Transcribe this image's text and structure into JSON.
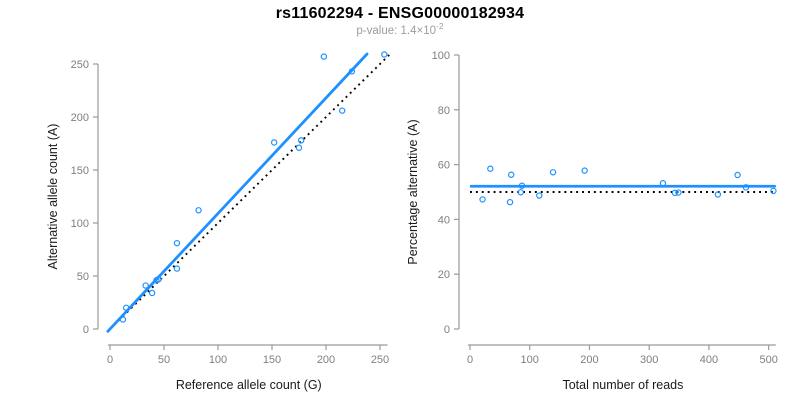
{
  "header": {
    "title": "rs11602294 - ENSG00000182934",
    "subtitle_prefix": "p-value: ",
    "subtitle_mantissa": "1.4×10",
    "subtitle_exponent": "-2"
  },
  "colors": {
    "point_blue": "#1E90FF",
    "fit_line_blue": "#1E90FF",
    "dotted_line_black": "#000000",
    "axis_gray": "#9a9a9a",
    "tick_label_gray": "#7f7f7f",
    "axis_title_color": "#1a1a1a",
    "title_color": "#000000",
    "subtitle_gray": "#9c9c9c",
    "background": "#ffffff"
  },
  "chart_data": [
    {
      "id": "allele-count-scatter",
      "type": "scatter",
      "title": "",
      "xlabel": "Reference allele count (G)",
      "ylabel": "Alternative allele count (A)",
      "xlim": [
        0,
        257
      ],
      "ylim": [
        0,
        260
      ],
      "xticks": [
        0,
        50,
        100,
        150,
        200,
        250
      ],
      "yticks": [
        0,
        50,
        100,
        150,
        200,
        250
      ],
      "grid": "off",
      "legend": "none",
      "points": [
        [
          12,
          9
        ],
        [
          15,
          20
        ],
        [
          33,
          41
        ],
        [
          39,
          34
        ],
        [
          43,
          46
        ],
        [
          45,
          47
        ],
        [
          62,
          57
        ],
        [
          62,
          81
        ],
        [
          82,
          112
        ],
        [
          152,
          176
        ],
        [
          175,
          171
        ],
        [
          177,
          178
        ],
        [
          198,
          257
        ],
        [
          215,
          206
        ],
        [
          224,
          243
        ],
        [
          254,
          259
        ]
      ],
      "fit_line": {
        "style": "solid",
        "slope": 1.09,
        "intercept": 0,
        "x_range": [
          -2,
          238
        ]
      },
      "reference_line": {
        "style": "dotted",
        "slope": 1,
        "intercept": 0,
        "x_range": [
          0,
          259
        ]
      }
    },
    {
      "id": "percentage-scatter",
      "type": "scatter",
      "title": "",
      "xlabel": "Total number of reads",
      "ylabel": "Percentage alternative (A)",
      "xlim": [
        0,
        512
      ],
      "ylim": [
        0,
        100
      ],
      "xticks": [
        0,
        100,
        200,
        300,
        400,
        500
      ],
      "yticks": [
        0,
        20,
        40,
        60,
        80,
        100
      ],
      "grid": "off",
      "legend": "none",
      "points": [
        [
          21,
          47.3
        ],
        [
          34,
          58.5
        ],
        [
          67,
          46.3
        ],
        [
          69,
          56.3
        ],
        [
          85,
          49.9
        ],
        [
          87,
          52.3
        ],
        [
          116,
          48.7
        ],
        [
          139,
          57.2
        ],
        [
          192,
          57.8
        ],
        [
          323,
          53.2
        ],
        [
          343,
          49.7
        ],
        [
          349,
          49.8
        ],
        [
          415,
          49.1
        ],
        [
          448,
          56.2
        ],
        [
          462,
          51.7
        ],
        [
          508,
          50.4
        ]
      ],
      "fit_line": {
        "style": "solid",
        "slope": 0,
        "intercept": 52.1,
        "x_range": [
          2,
          510
        ]
      },
      "reference_line": {
        "style": "dotted",
        "slope": 0,
        "intercept": 50,
        "x_range": [
          0,
          512
        ]
      }
    }
  ]
}
